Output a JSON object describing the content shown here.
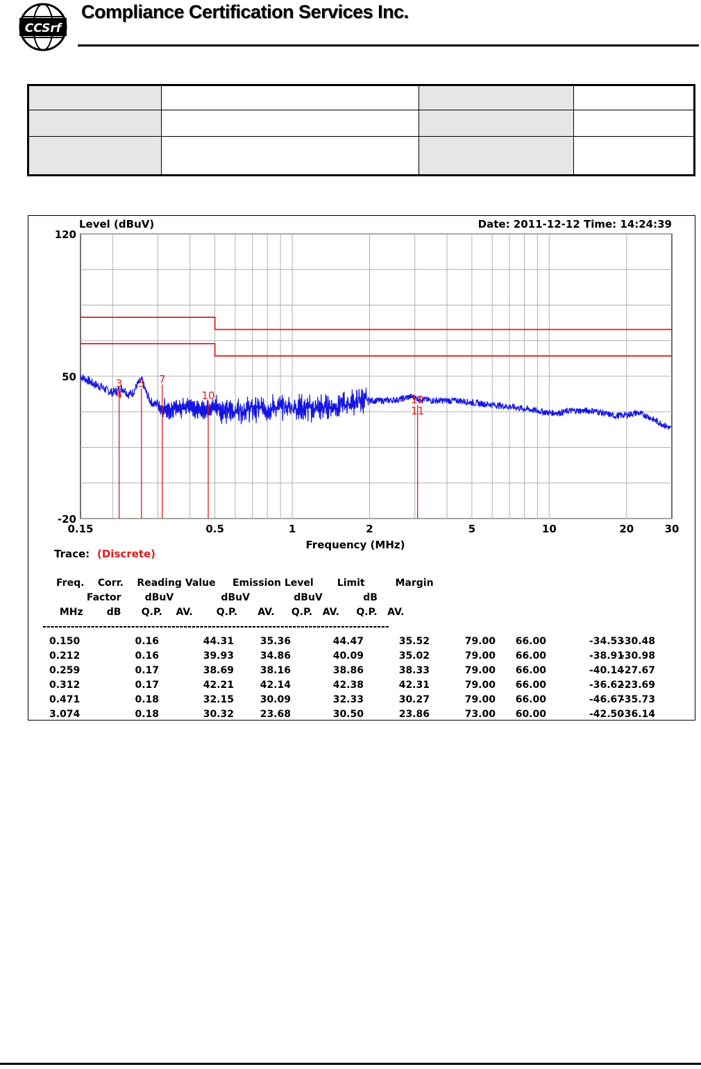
{
  "header": {
    "company": "Compliance Certification Services Inc.",
    "logo_text": "CCSrf"
  },
  "info_table": {
    "rows": [
      [
        "",
        "",
        "",
        ""
      ],
      [
        "",
        "",
        "",
        ""
      ],
      [
        "",
        "",
        "",
        ""
      ]
    ]
  },
  "chart_data": {
    "type": "line",
    "title": "",
    "ylabel": "Level (dBuV)",
    "xlabel": "Frequency (MHz)",
    "date_text": "Date: 2011-12-12  Time: 14:24:39",
    "x_scale": "log",
    "xlim": [
      0.15,
      30
    ],
    "ylim": [
      -20,
      120
    ],
    "y_ticks": [
      "120",
      "50",
      "-20"
    ],
    "x_ticks": [
      {
        "value": 0.15,
        "label": "0.15"
      },
      {
        "value": 0.5,
        "label": "0.5"
      },
      {
        "value": 1,
        "label": "1"
      },
      {
        "value": 2,
        "label": "2"
      },
      {
        "value": 5,
        "label": "5"
      },
      {
        "value": 10,
        "label": "10"
      },
      {
        "value": 20,
        "label": "20"
      },
      {
        "value": 30,
        "label": "30"
      }
    ],
    "grid": true,
    "colors": {
      "trace": "#1515e0",
      "limit": "#e01b1b",
      "marker": "#e01b1b",
      "grid": "#b0b0b0"
    },
    "series": [
      {
        "name": "",
        "x": [
          0.15,
          0.16,
          0.17,
          0.18,
          0.19,
          0.2,
          0.21,
          0.22,
          0.23,
          0.24,
          0.25,
          0.26,
          0.27,
          0.28,
          0.29,
          0.3,
          0.31,
          0.32,
          0.33,
          0.35,
          0.37,
          0.4,
          0.43,
          0.46,
          0.5,
          0.55,
          0.6,
          0.7,
          0.8,
          0.9,
          1.0,
          1.2,
          1.4,
          1.6,
          1.8,
          2.0,
          2.3,
          2.6,
          2.9,
          3.1,
          3.5,
          4.0,
          4.5,
          5.0,
          6.0,
          7.0,
          8.0,
          9.0,
          10.0,
          11.0,
          12.0,
          13.0,
          14.0,
          15.0,
          16.0,
          18.0,
          20.0,
          22.0,
          24.0,
          26.0,
          28.0,
          30.0
        ],
        "y": [
          50,
          48,
          46,
          45,
          43,
          42,
          43,
          44,
          41,
          42,
          46,
          48,
          42,
          38,
          36,
          37,
          33,
          35,
          32,
          35,
          34,
          36,
          33,
          34,
          35,
          33,
          33,
          34,
          34,
          35,
          35,
          34,
          35,
          36,
          38,
          38,
          38,
          38.5,
          40,
          39,
          38,
          38,
          38,
          37,
          36,
          35,
          34,
          33,
          32,
          32,
          33,
          33,
          33,
          33,
          32,
          30.5,
          31,
          32,
          30.5,
          28,
          26,
          24
        ]
      }
    ],
    "limits": [
      {
        "name": "QP",
        "points": [
          [
            0.15,
            79
          ],
          [
            0.5,
            79
          ],
          [
            0.5,
            73
          ],
          [
            30,
            73
          ]
        ]
      },
      {
        "name": "AV",
        "points": [
          [
            0.15,
            66
          ],
          [
            0.5,
            66
          ],
          [
            0.5,
            60
          ],
          [
            30,
            60
          ]
        ]
      }
    ],
    "markers": [
      {
        "freq": 0.212,
        "labels": [
          "3",
          "4"
        ],
        "y_top": 44
      },
      {
        "freq": 0.259,
        "labels": [
          "5"
        ],
        "y_top": 44
      },
      {
        "freq": 0.312,
        "labels": [
          "7"
        ],
        "y_top": 46
      },
      {
        "freq": 0.471,
        "labels": [
          "10"
        ],
        "y_top": 38
      },
      {
        "freq": 3.074,
        "labels": [
          "12",
          "11"
        ],
        "y_top": 36
      }
    ],
    "trace_label": "Trace:",
    "trace_value": "(Discrete)",
    "table": {
      "header_lines": [
        "Freq.    Corr.    Reading Value     Emission Level       Limit         Margin",
        "         Factor       dBuV              dBuV             dBuV            dB",
        " MHz       dB      Q.P.    AV.       Q.P.      AV.     Q.P.   AV.     Q.P.   AV."
      ],
      "separator": "--------------------------------------------------------------------------------------",
      "rows": [
        {
          "freq": "0.150",
          "corr": "0.16",
          "rd_qp": "44.31",
          "rd_av": "35.36",
          "em_qp": "44.47",
          "em_av": "35.52",
          "lim_qp": "79.00",
          "lim_av": "66.00",
          "mg_qp": "-34.53",
          "mg_av": "-30.48"
        },
        {
          "freq": "0.212",
          "corr": "0.16",
          "rd_qp": "39.93",
          "rd_av": "34.86",
          "em_qp": "40.09",
          "em_av": "35.02",
          "lim_qp": "79.00",
          "lim_av": "66.00",
          "mg_qp": "-38.91",
          "mg_av": "-30.98"
        },
        {
          "freq": "0.259",
          "corr": "0.17",
          "rd_qp": "38.69",
          "rd_av": "38.16",
          "em_qp": "38.86",
          "em_av": "38.33",
          "lim_qp": "79.00",
          "lim_av": "66.00",
          "mg_qp": "-40.14",
          "mg_av": "-27.67"
        },
        {
          "freq": "0.312",
          "corr": "0.17",
          "rd_qp": "42.21",
          "rd_av": "42.14",
          "em_qp": "42.38",
          "em_av": "42.31",
          "lim_qp": "79.00",
          "lim_av": "66.00",
          "mg_qp": "-36.62",
          "mg_av": "-23.69"
        },
        {
          "freq": "0.471",
          "corr": "0.18",
          "rd_qp": "32.15",
          "rd_av": "30.09",
          "em_qp": "32.33",
          "em_av": "30.27",
          "lim_qp": "79.00",
          "lim_av": "66.00",
          "mg_qp": "-46.67",
          "mg_av": "-35.73"
        },
        {
          "freq": "3.074",
          "corr": "0.18",
          "rd_qp": "30.32",
          "rd_av": "23.68",
          "em_qp": "30.50",
          "em_av": "23.86",
          "lim_qp": "73.00",
          "lim_av": "60.00",
          "mg_qp": "-42.50",
          "mg_av": "-36.14"
        }
      ]
    }
  }
}
